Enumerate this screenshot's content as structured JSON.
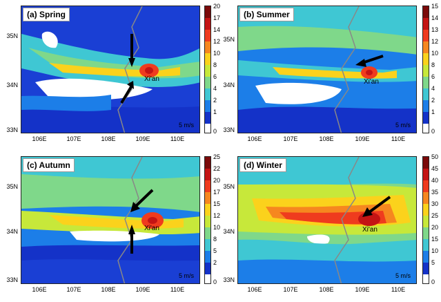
{
  "panels": [
    {
      "label": "(a) Spring",
      "city": "Xi'an",
      "ref": "5 m/s",
      "cbar_ticks": [
        "20",
        "17",
        "14",
        "12",
        "10",
        "8",
        "6",
        "4",
        "2",
        "1",
        "0"
      ]
    },
    {
      "label": "(b) Summer",
      "city": "Xi'an",
      "ref": "5 m/s",
      "cbar_ticks": [
        "15",
        "14",
        "13",
        "12",
        "10",
        "8",
        "6",
        "4",
        "2",
        "1",
        "0"
      ]
    },
    {
      "label": "(c) Autumn",
      "city": "Xi'an",
      "ref": "5 m/s",
      "cbar_ticks": [
        "25",
        "22",
        "20",
        "17",
        "15",
        "12",
        "10",
        "8",
        "5",
        "2",
        "0"
      ]
    },
    {
      "label": "(d) Winter",
      "city": "Xi'an",
      "ref": "5 m/s",
      "cbar_ticks": [
        "50",
        "45",
        "40",
        "35",
        "30",
        "25",
        "20",
        "15",
        "10",
        "5",
        "0"
      ]
    }
  ],
  "axes": {
    "y_ticks": [
      "35N",
      "34N",
      "33N"
    ],
    "x_ticks": [
      "106E",
      "107E",
      "108E",
      "109E",
      "110E"
    ]
  },
  "colors": {
    "colorbar": [
      "#7b0a0a",
      "#c41414",
      "#ef3b1e",
      "#f6871f",
      "#fbd21c",
      "#c7e83a",
      "#7fd88a",
      "#3fc7d3",
      "#1c7ee8",
      "#1432c8",
      "#ffffff"
    ]
  }
}
